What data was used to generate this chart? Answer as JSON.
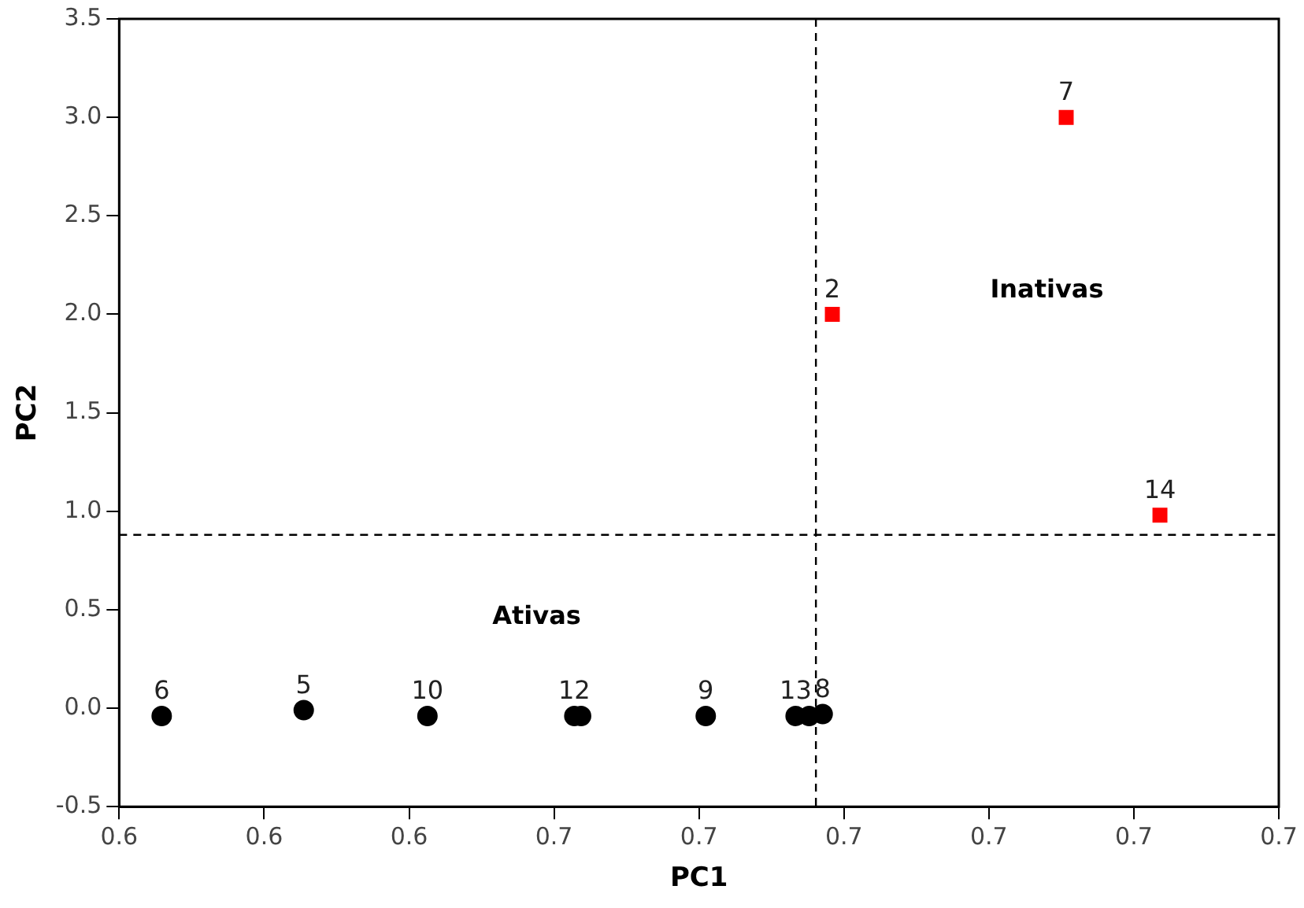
{
  "chart_data": {
    "type": "scatter",
    "xlabel": "PC1",
    "ylabel": "PC2",
    "xlim": [
      0.61,
      0.73
    ],
    "xticks": [
      {
        "value": 0.61,
        "label": "0.6"
      },
      {
        "value": 0.625,
        "label": "0.6"
      },
      {
        "value": 0.64,
        "label": "0.6"
      },
      {
        "value": 0.655,
        "label": "0.7"
      },
      {
        "value": 0.67,
        "label": "0.7"
      },
      {
        "value": 0.685,
        "label": "0.7"
      },
      {
        "value": 0.7,
        "label": "0.7"
      },
      {
        "value": 0.715,
        "label": "0.7"
      },
      {
        "value": 0.73,
        "label": "0.7"
      }
    ],
    "ylim": [
      -0.5,
      3.5
    ],
    "yticks": [
      {
        "value": -0.5,
        "label": "-0.5"
      },
      {
        "value": 0,
        "label": "0.0"
      },
      {
        "value": 0.5,
        "label": "0.5"
      },
      {
        "value": 1,
        "label": "1.0"
      },
      {
        "value": 1.5,
        "label": "1.5"
      },
      {
        "value": 2,
        "label": "2.0"
      },
      {
        "value": 2.5,
        "label": "2.5"
      },
      {
        "value": 3,
        "label": "3.0"
      },
      {
        "value": 3.5,
        "label": "3.5"
      }
    ],
    "grid": false,
    "legend": false,
    "series": [
      {
        "color": "#000000",
        "marker": "circle",
        "x": [
          0.6144,
          0.6291,
          0.6419,
          0.6571,
          0.6578,
          0.6707,
          0.68,
          0.6814,
          0.6828
        ],
        "values": [
          -0.04,
          -0.01,
          -0.04,
          -0.04,
          -0.04,
          -0.04,
          -0.04,
          -0.04,
          -0.03
        ]
      },
      {
        "color": "#ff0000",
        "marker": "square",
        "x": [
          0.6838,
          0.708,
          0.7177
        ],
        "values": [
          2.0,
          3.0,
          0.98
        ]
      }
    ],
    "ref_lines": [
      {
        "axis": "x",
        "value": 0.6821,
        "line_style": "dashed",
        "color": "#000000"
      },
      {
        "axis": "y",
        "value": 0.88,
        "line_style": "dashed",
        "color": "#000000"
      }
    ],
    "annotations": [
      "Inativas",
      "Ativas",
      {
        "text": "6",
        "x": 0.6144,
        "y": -0.04
      },
      {
        "text": "5",
        "x": 0.6291,
        "y": -0.01
      },
      {
        "text": "10",
        "x": 0.6419,
        "y": -0.04
      },
      {
        "text": "12",
        "x": 0.6571,
        "y": -0.04
      },
      {
        "text": "9",
        "x": 0.6707,
        "y": -0.04
      },
      {
        "text": "13",
        "x": 0.68,
        "y": -0.04
      },
      {
        "text": "8",
        "x": 0.6828,
        "y": -0.03
      },
      {
        "text": "2",
        "x": 0.6838,
        "y": 2.0
      },
      {
        "text": "7",
        "x": 0.708,
        "y": 3.0
      },
      {
        "text": "14",
        "x": 0.7177,
        "y": 0.98
      }
    ]
  }
}
